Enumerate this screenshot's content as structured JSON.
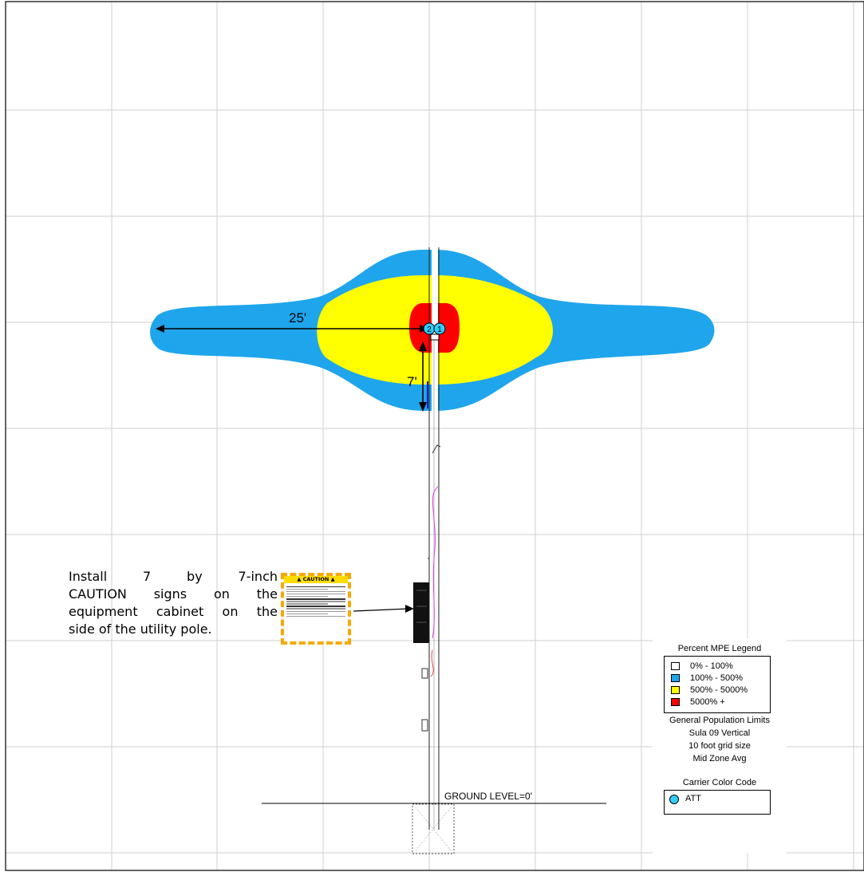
{
  "dimensions": {
    "horizontal": "25'",
    "vertical": "7'"
  },
  "antennas": [
    "2",
    "1"
  ],
  "ground_label": "GROUND LEVEL=0'",
  "caption": {
    "lines": [
      "Install 7 by 7-inch",
      "CAUTION signs on the",
      "equipment cabinet on the",
      "side of the utility pole."
    ]
  },
  "sign": {
    "header": "▲ CAUTION ▲"
  },
  "legend": {
    "title": "Percent MPE Legend",
    "items": [
      {
        "label": "0% - 100%",
        "color": "#ffffff"
      },
      {
        "label": "100% - 500%",
        "color": "#1fa5ec"
      },
      {
        "label": "500% - 5000%",
        "color": "#ffff00"
      },
      {
        "label": "5000% +",
        "color": "#ff0000"
      }
    ],
    "notes": [
      "General Population Limits",
      "Sula 09 Vertical",
      "10 foot grid size",
      "Mid Zone Avg"
    ],
    "carrier_title": "Carrier Color Code",
    "carrier": {
      "label": "ATT",
      "color": "#33ccff"
    }
  },
  "colors": {
    "blue_zone": "#1fa5ec",
    "yellow_zone": "#ffff00",
    "red_zone": "#ff0000",
    "grid": "#cfcfcf",
    "antenna": "#33ccff"
  }
}
